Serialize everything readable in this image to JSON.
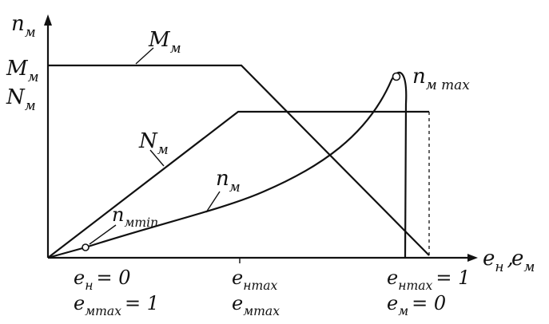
{
  "y_axis_label": {
    "base": "n",
    "sub": "м"
  },
  "x_axis_label": [
    {
      "base": "e",
      "sub": "н",
      "rest": ","
    },
    {
      "base": "e",
      "sub": "м"
    }
  ],
  "left_labels": [
    {
      "base": "M",
      "sub": "м"
    },
    {
      "base": "N",
      "sub": "м"
    }
  ],
  "curve_labels": {
    "M": {
      "base": "M",
      "sub": "м"
    },
    "N": {
      "base": "N",
      "sub": "м"
    },
    "n": {
      "base": "n",
      "sub": "м"
    },
    "n_max": {
      "base": "n",
      "sub": "м max"
    },
    "n_min": {
      "base": "n",
      "sub": "мmin"
    }
  },
  "x_marks": [
    [
      {
        "base": "e",
        "sub": "н",
        "rest": "= 0"
      },
      {
        "base": "e",
        "sub": "мmax",
        "rest": "= 1"
      }
    ],
    [
      {
        "base": "e",
        "sub": "нmax"
      },
      {
        "base": "e",
        "sub": "мmax"
      }
    ],
    [
      {
        "base": "e",
        "sub": "нmax",
        "rest": "= 1"
      },
      {
        "base": "e",
        "sub": "м",
        "rest": "= 0"
      }
    ]
  ]
}
